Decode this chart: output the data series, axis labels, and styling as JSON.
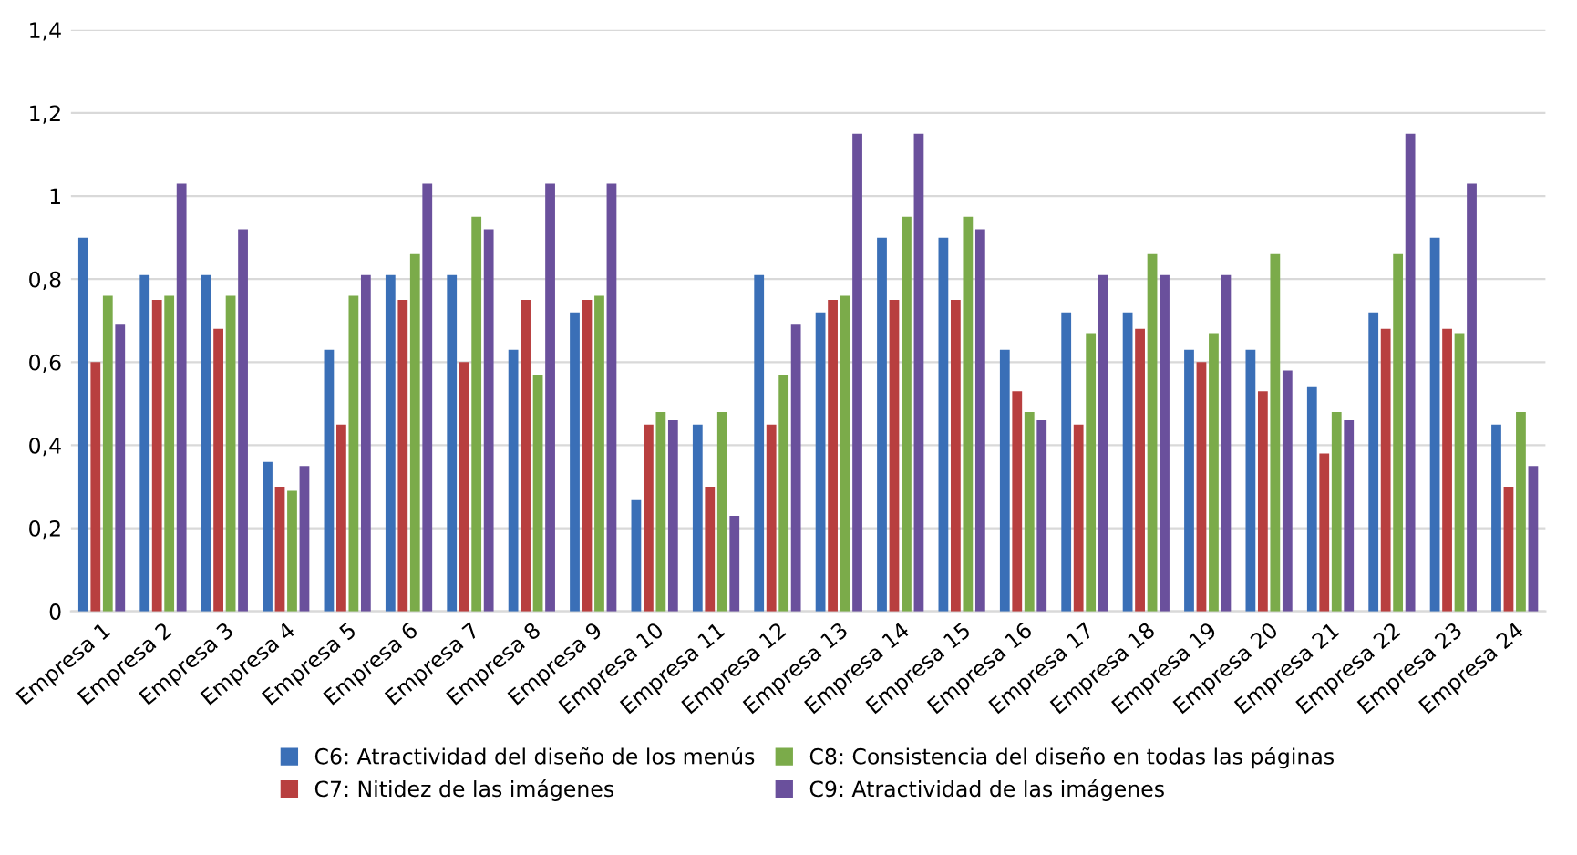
{
  "chart_data": {
    "type": "bar",
    "categories": [
      "Empresa 1",
      "Empresa 2",
      "Empresa 3",
      "Empresa 4",
      "Empresa 5",
      "Empresa 6",
      "Empresa 7",
      "Empresa 8",
      "Empresa 9",
      "Empresa 10",
      "Empresa 11",
      "Empresa 12",
      "Empresa 13",
      "Empresa 14",
      "Empresa 15",
      "Empresa 16",
      "Empresa 17",
      "Empresa 18",
      "Empresa 19",
      "Empresa 20",
      "Empresa 21",
      "Empresa 22",
      "Empresa 23",
      "Empresa 24"
    ],
    "series": [
      {
        "name": "C6: Atractividad del diseño de los menús",
        "color": "#3a6fb7",
        "values": [
          0.9,
          0.81,
          0.81,
          0.36,
          0.63,
          0.81,
          0.81,
          0.63,
          0.72,
          0.27,
          0.45,
          0.81,
          0.72,
          0.9,
          0.9,
          0.63,
          0.72,
          0.72,
          0.63,
          0.63,
          0.54,
          0.72,
          0.9,
          0.45
        ]
      },
      {
        "name": "C7: Nitidez de las imágenes",
        "color": "#b83f3f",
        "values": [
          0.6,
          0.75,
          0.68,
          0.3,
          0.45,
          0.75,
          0.6,
          0.75,
          0.75,
          0.45,
          0.3,
          0.45,
          0.75,
          0.75,
          0.75,
          0.53,
          0.45,
          0.68,
          0.6,
          0.53,
          0.38,
          0.68,
          0.68,
          0.3
        ]
      },
      {
        "name": "C8: Consistencia del diseño en todas las páginas",
        "color": "#7bab4a",
        "values": [
          0.76,
          0.76,
          0.76,
          0.29,
          0.76,
          0.86,
          0.95,
          0.57,
          0.76,
          0.48,
          0.48,
          0.57,
          0.76,
          0.95,
          0.95,
          0.48,
          0.67,
          0.86,
          0.67,
          0.86,
          0.48,
          0.86,
          0.67,
          0.48
        ]
      },
      {
        "name": "C9: Atractividad de las imágenes",
        "color": "#6a509c",
        "values": [
          0.69,
          1.03,
          0.92,
          0.35,
          0.81,
          1.03,
          0.92,
          1.03,
          1.03,
          0.46,
          0.23,
          0.69,
          1.15,
          1.15,
          0.92,
          0.46,
          0.81,
          0.81,
          0.81,
          0.58,
          0.46,
          1.15,
          1.03,
          0.35
        ]
      }
    ],
    "ylim": [
      0,
      1.4
    ],
    "yticks": [
      0,
      {
        "value": 0.2,
        "label": "0,2"
      },
      {
        "value": 0.4,
        "label": "0,4"
      },
      {
        "value": 0.6,
        "label": "0,6"
      },
      {
        "value": 0.8,
        "label": "0,8"
      },
      1,
      {
        "value": 1.2,
        "label": "1,2"
      },
      {
        "value": 1.4,
        "label": "1,4"
      }
    ],
    "grid": "y",
    "legend": "bottom"
  }
}
